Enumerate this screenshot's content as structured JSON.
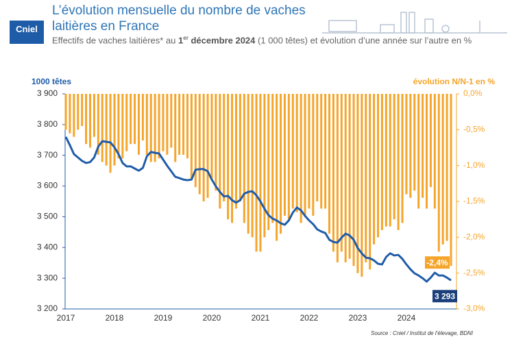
{
  "chart_data": {
    "type": "combo",
    "logo": "Cniel",
    "title": "L’évolution mensuelle du nombre de vaches laitières en France",
    "subtitle": {
      "text1": "Effectifs de vaches laitières* au ",
      "bold1": "1",
      "sup": "er",
      "bold2": " décembre 2024",
      "text2": " (1 000 têtes) et évolution d’une année sur l’autre en %"
    },
    "y_label": "1000 têtes",
    "y2_label": "évolution N/N-1 en %",
    "source": "Source : Cniel / Institut de l’élevage, BDNI",
    "categories": [
      "2017",
      null,
      null,
      null,
      null,
      null,
      null,
      null,
      null,
      null,
      null,
      null,
      "2018",
      null,
      null,
      null,
      null,
      null,
      null,
      null,
      null,
      null,
      null,
      null,
      "2019",
      null,
      null,
      null,
      null,
      null,
      null,
      null,
      null,
      null,
      null,
      null,
      "2020",
      null,
      null,
      null,
      null,
      null,
      null,
      null,
      null,
      null,
      null,
      null,
      "2021",
      null,
      null,
      null,
      null,
      null,
      null,
      null,
      null,
      null,
      null,
      null,
      "2022",
      null,
      null,
      null,
      null,
      null,
      null,
      null,
      null,
      null,
      null,
      null,
      "2023",
      null,
      null,
      null,
      null,
      null,
      null,
      null,
      null,
      null,
      null,
      null,
      "2024",
      null,
      null,
      null,
      null,
      null,
      null,
      null,
      null,
      null,
      null,
      null
    ],
    "ylim": [
      3200,
      3900
    ],
    "yticks": [
      {
        "value": 3200,
        "label": "3 200"
      },
      {
        "value": 3300,
        "label": "3 300"
      },
      {
        "value": 3400,
        "label": "3 400"
      },
      {
        "value": 3500,
        "label": "3 500"
      },
      {
        "value": 3600,
        "label": "3 600"
      },
      {
        "value": 3700,
        "label": "3 700"
      },
      {
        "value": 3800,
        "label": "3 800"
      },
      {
        "value": 3900,
        "label": "3 900"
      }
    ],
    "y2lim": [
      -3.0,
      0
    ],
    "y2ticks": [
      {
        "value": -3.0,
        "label": "-3,0%"
      },
      {
        "value": -2.5,
        "label": "-2,5%"
      },
      {
        "value": -2.0,
        "label": "-2,0%"
      },
      {
        "value": -1.5,
        "label": "-1,5%"
      },
      {
        "value": -1.0,
        "label": "-1,0%"
      },
      {
        "value": -0.5,
        "label": "-0,5%"
      },
      {
        "value": 0,
        "label": "0,0%"
      }
    ],
    "series": [
      {
        "type": "bar",
        "axis": "y2",
        "color": "#f5a52b",
        "values": [
          -0.5,
          -0.55,
          -0.6,
          -0.5,
          -0.45,
          -0.7,
          -0.75,
          -0.6,
          -0.85,
          -0.95,
          -1.0,
          -1.1,
          -1.0,
          -0.9,
          -0.9,
          -0.8,
          -0.7,
          -0.7,
          -0.85,
          -0.65,
          -0.85,
          -0.95,
          -0.95,
          -0.9,
          -0.8,
          -0.85,
          -0.75,
          -0.95,
          -0.85,
          -0.85,
          -0.9,
          -1.2,
          -1.3,
          -1.4,
          -1.5,
          -1.45,
          -1.2,
          -1.35,
          -1.6,
          -1.5,
          -1.75,
          -1.8,
          -1.6,
          -1.5,
          -1.8,
          -1.95,
          -2.0,
          -2.2,
          -2.2,
          -2.0,
          -1.9,
          -1.8,
          -2.05,
          -1.95,
          -1.7,
          -1.75,
          -1.6,
          -1.65,
          -1.8,
          -1.7,
          -1.6,
          -1.7,
          -1.5,
          -1.6,
          -1.6,
          -1.95,
          -2.2,
          -2.35,
          -2.2,
          -2.35,
          -2.3,
          -2.4,
          -2.5,
          -2.55,
          -2.35,
          -2.45,
          -2.1,
          -2.0,
          -1.9,
          -1.85,
          -1.85,
          -1.75,
          -1.9,
          -1.8,
          -1.4,
          -1.45,
          -1.35,
          -1.6,
          -1.45,
          -1.6,
          -1.3,
          -1.6,
          -2.2,
          -2.1,
          -2.05,
          -2.4
        ],
        "value_labels": [
          null,
          null,
          null,
          null,
          null,
          null,
          null,
          null,
          null,
          null,
          null,
          null,
          null,
          null,
          null,
          null,
          null,
          null,
          null,
          null,
          null,
          null,
          null,
          null,
          null,
          null,
          null,
          null,
          null,
          null,
          null,
          null,
          null,
          null,
          null,
          null,
          null,
          null,
          null,
          null,
          null,
          null,
          null,
          null,
          null,
          null,
          null,
          null,
          null,
          null,
          null,
          null,
          null,
          null,
          null,
          null,
          null,
          null,
          null,
          null,
          null,
          null,
          null,
          null,
          null,
          null,
          null,
          null,
          null,
          null,
          null,
          null,
          null,
          null,
          null,
          null,
          null,
          null,
          null,
          null,
          null,
          null,
          null,
          null,
          null,
          null,
          null,
          null,
          null,
          null,
          null,
          null,
          null,
          null,
          null,
          "-2,4%"
        ]
      },
      {
        "type": "line",
        "axis": "y",
        "color": "#1f5ca8",
        "values": [
          3760,
          3733,
          3704,
          3693,
          3682,
          3675,
          3678,
          3693,
          3728,
          3746,
          3744,
          3742,
          3726,
          3704,
          3675,
          3664,
          3664,
          3657,
          3650,
          3659,
          3697,
          3711,
          3708,
          3706,
          3686,
          3666,
          3648,
          3630,
          3626,
          3621,
          3619,
          3621,
          3653,
          3655,
          3655,
          3648,
          3621,
          3599,
          3581,
          3566,
          3568,
          3554,
          3546,
          3554,
          3575,
          3581,
          3583,
          3570,
          3550,
          3526,
          3505,
          3494,
          3488,
          3479,
          3474,
          3488,
          3514,
          3530,
          3521,
          3503,
          3488,
          3476,
          3459,
          3452,
          3447,
          3425,
          3418,
          3416,
          3432,
          3445,
          3439,
          3425,
          3398,
          3381,
          3367,
          3365,
          3358,
          3347,
          3345,
          3369,
          3381,
          3374,
          3376,
          3363,
          3345,
          3329,
          3316,
          3309,
          3300,
          3289,
          3302,
          3318,
          3309,
          3309,
          3302,
          3293
        ],
        "value_labels": [
          null,
          null,
          null,
          null,
          null,
          null,
          null,
          null,
          null,
          null,
          null,
          null,
          null,
          null,
          null,
          null,
          null,
          null,
          null,
          null,
          null,
          null,
          null,
          null,
          null,
          null,
          null,
          null,
          null,
          null,
          null,
          null,
          null,
          null,
          null,
          null,
          null,
          null,
          null,
          null,
          null,
          null,
          null,
          null,
          null,
          null,
          null,
          null,
          null,
          null,
          null,
          null,
          null,
          null,
          null,
          null,
          null,
          null,
          null,
          null,
          null,
          null,
          null,
          null,
          null,
          null,
          null,
          null,
          null,
          null,
          null,
          null,
          null,
          null,
          null,
          null,
          null,
          null,
          null,
          null,
          null,
          null,
          null,
          null,
          null,
          null,
          null,
          null,
          null,
          null,
          null,
          null,
          null,
          null,
          null,
          "3 293"
        ]
      }
    ],
    "grid": false
  }
}
